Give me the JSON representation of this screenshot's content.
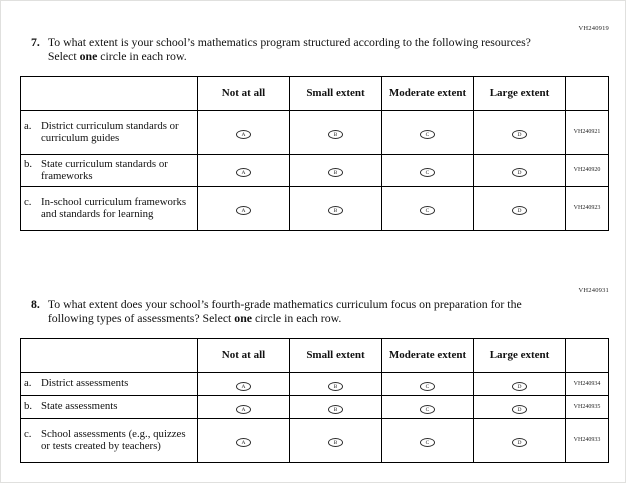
{
  "option_letters": [
    "A",
    "B",
    "C",
    "D"
  ],
  "questions": [
    {
      "number": "7.",
      "code": "VH240919",
      "text1": "To what extent is your school’s mathematics program structured according to the following resources? Select ",
      "bold": "one",
      "text2": " circle in each row.",
      "columns": [
        "Not at all",
        "Small extent",
        "Moderate extent",
        "Large extent"
      ],
      "rows": [
        {
          "letter": "a.",
          "label": "District curriculum standards or curriculum guides",
          "code": "VH240921"
        },
        {
          "letter": "b.",
          "label": "State curriculum standards or frameworks",
          "code": "VH240920"
        },
        {
          "letter": "c.",
          "label": "In-school curriculum frameworks and standards for learning",
          "code": "VH240923"
        }
      ]
    },
    {
      "number": "8.",
      "code": "VH240931",
      "text1": "To what extent does your school’s fourth-grade mathematics curriculum focus on preparation for the following types of assessments? Select ",
      "bold": "one",
      "text2": " circle in each row.",
      "columns": [
        "Not at all",
        "Small extent",
        "Moderate extent",
        "Large extent"
      ],
      "rows": [
        {
          "letter": "a.",
          "label": "District assessments",
          "code": "VH240934"
        },
        {
          "letter": "b.",
          "label": "State assessments",
          "code": "VH240935"
        },
        {
          "letter": "c.",
          "label": "School assessments (e.g., quizzes or tests created by teachers)",
          "code": "VH240933"
        }
      ]
    }
  ]
}
